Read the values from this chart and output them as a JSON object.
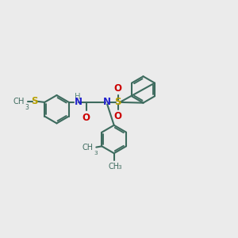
{
  "bg_color": "#ebebeb",
  "bond_color": "#3d6b5e",
  "N_color": "#2222cc",
  "O_color": "#cc0000",
  "S_color": "#b8a000",
  "H_color": "#5a8a7a",
  "line_width": 1.5,
  "font_size": 8.5,
  "figsize": [
    3.0,
    3.0
  ],
  "dpi": 100,
  "xlim": [
    0,
    12
  ],
  "ylim": [
    0,
    10
  ]
}
